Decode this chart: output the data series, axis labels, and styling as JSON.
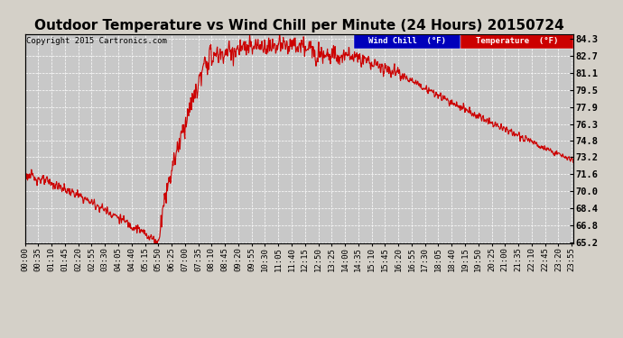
{
  "title": "Outdoor Temperature vs Wind Chill per Minute (24 Hours) 20150724",
  "copyright": "Copyright 2015 Cartronics.com",
  "ylabel_right_ticks": [
    84.3,
    82.7,
    81.1,
    79.5,
    77.9,
    76.3,
    74.8,
    73.2,
    71.6,
    70.0,
    68.4,
    66.8,
    65.2
  ],
  "ymin": 65.2,
  "ymax": 84.3,
  "legend_labels": [
    "Wind Chill  (°F)",
    "Temperature  (°F)"
  ],
  "legend_colors": [
    "#0000bb",
    "#cc0000"
  ],
  "line_color": "#cc0000",
  "bg_color": "#d4d0c8",
  "plot_bg_color": "#c8c8c8",
  "grid_color": "white",
  "title_fontsize": 11,
  "tick_label_fontsize": 6.5,
  "x_tick_every": 35,
  "total_minutes": 1440
}
